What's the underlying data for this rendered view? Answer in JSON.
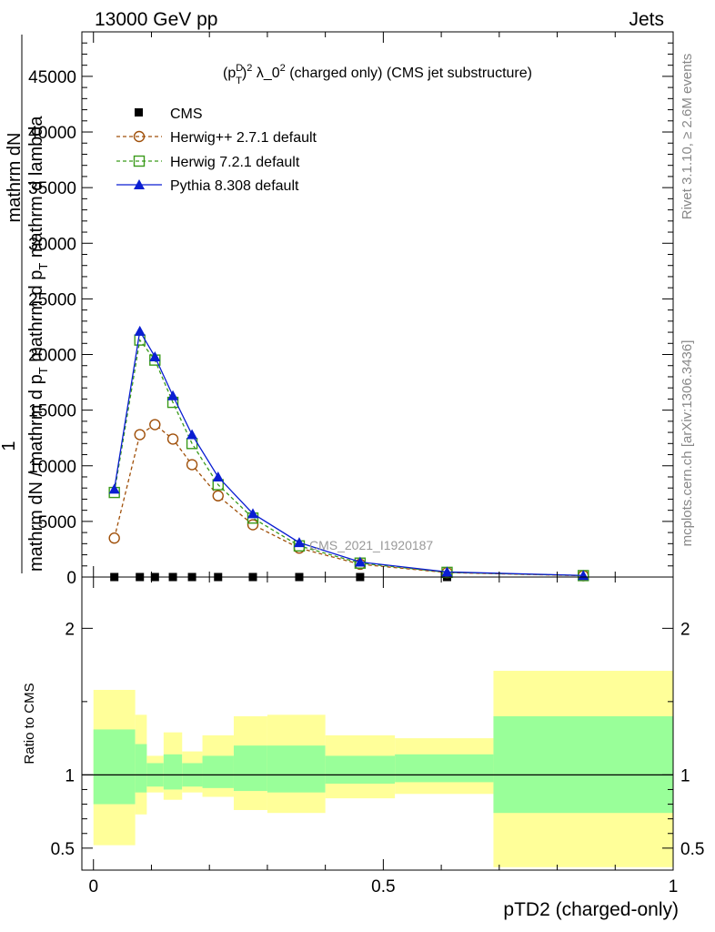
{
  "header": {
    "left": "13000 GeV pp",
    "right": "Jets"
  },
  "side_labels": {
    "rivet": "Rivet 3.1.10, ≥ 2.6M events",
    "mcplots": "mcplots.cern.ch [arXiv:1306.3436]"
  },
  "colors": {
    "cms": "#000000",
    "herwigpp": "#a0500a",
    "herwig7": "#3a9a1a",
    "pythia": "#0a1ed2",
    "band_inner": "#99ff99",
    "band_outer": "#ffff99"
  },
  "chart_data": [
    {
      "type": "line",
      "title_parts": {
        "p": "(p",
        "sup1": "D",
        "sub1": "T",
        "rest": ")",
        "sup2": "2",
        "lam": " λ_0",
        "sup3": "2",
        "tail": " (charged only) (CMS jet substructure)"
      },
      "ylabel_parts": {
        "one": "1",
        "num": "mathrm dN",
        "den_a": "mathrm dN / mathrm d p",
        "den_sub": "T",
        "den_b": " mathrm d p",
        "den_sub2": "T",
        "den_c": " mathrm d lambda"
      },
      "watermark": "CMS_2021_I1920187",
      "x_range": [
        -0.02,
        1.0
      ],
      "y_range": [
        0,
        49000
      ],
      "y_ticks": [
        0,
        5000,
        10000,
        15000,
        20000,
        25000,
        30000,
        35000,
        40000,
        45000
      ],
      "y_tick_labels": [
        "0",
        "5000",
        "10000",
        "15000",
        "20000",
        "25000",
        "30000",
        "35000",
        "40000",
        "45000"
      ],
      "legend": [
        "CMS",
        "Herwig++ 2.7.1 default",
        "Herwig 7.2.1 default",
        "Pythia 8.308 default"
      ],
      "legend_position": "top-left",
      "series": [
        {
          "name": "CMS",
          "style": "square",
          "x": [
            0.036,
            0.08,
            0.106,
            0.137,
            0.17,
            0.215,
            0.275,
            0.355,
            0.46,
            0.61,
            0.845
          ],
          "y": [
            0,
            0,
            0,
            0,
            0,
            0,
            0,
            0,
            0,
            0,
            0
          ]
        },
        {
          "name": "Herwig++ 2.7.1 default",
          "style": "circle",
          "x": [
            0.036,
            0.08,
            0.106,
            0.137,
            0.17,
            0.215,
            0.275,
            0.355,
            0.46,
            0.61,
            0.845
          ],
          "y": [
            3500,
            12800,
            13700,
            12400,
            10100,
            7300,
            4700,
            2600,
            1150,
            400,
            120
          ]
        },
        {
          "name": "Herwig 7.2.1 default",
          "style": "square-open",
          "x": [
            0.036,
            0.08,
            0.106,
            0.137,
            0.17,
            0.215,
            0.275,
            0.355,
            0.46,
            0.61,
            0.845
          ],
          "y": [
            7600,
            21300,
            19500,
            15700,
            12000,
            8300,
            5300,
            2800,
            1250,
            420,
            130
          ]
        },
        {
          "name": "Pythia 8.308 default",
          "style": "triangle",
          "x": [
            0.036,
            0.08,
            0.106,
            0.137,
            0.17,
            0.215,
            0.275,
            0.355,
            0.46,
            0.61,
            0.845
          ],
          "y": [
            7900,
            22100,
            19800,
            16300,
            12800,
            9000,
            5700,
            3100,
            1350,
            460,
            140
          ]
        }
      ]
    },
    {
      "type": "area",
      "ylabel": "Ratio to CMS",
      "xlabel": "pTD2 (charged-only)",
      "x_range": [
        -0.02,
        1.0
      ],
      "y_range": [
        0.35,
        2.35
      ],
      "x_ticks": [
        0,
        0.5,
        1
      ],
      "x_tick_labels": [
        "0",
        "0.5",
        "1"
      ],
      "y_ticks": [
        0.5,
        1,
        2
      ],
      "y_tick_labels": [
        "0.5",
        "1",
        "2"
      ],
      "reference_line": 1,
      "bins": [
        {
          "x0": 0.0,
          "x1": 0.072,
          "inner": [
            0.8,
            1.31
          ],
          "outer": [
            0.52,
            1.58
          ]
        },
        {
          "x0": 0.072,
          "x1": 0.092,
          "inner": [
            0.88,
            1.21
          ],
          "outer": [
            0.73,
            1.41
          ]
        },
        {
          "x0": 0.092,
          "x1": 0.121,
          "inner": [
            0.92,
            1.08
          ],
          "outer": [
            0.88,
            1.13
          ]
        },
        {
          "x0": 0.121,
          "x1": 0.153,
          "inner": [
            0.9,
            1.14
          ],
          "outer": [
            0.83,
            1.29
          ]
        },
        {
          "x0": 0.153,
          "x1": 0.188,
          "inner": [
            0.92,
            1.08
          ],
          "outer": [
            0.88,
            1.16
          ]
        },
        {
          "x0": 0.188,
          "x1": 0.242,
          "inner": [
            0.91,
            1.13
          ],
          "outer": [
            0.85,
            1.27
          ]
        },
        {
          "x0": 0.242,
          "x1": 0.3,
          "inner": [
            0.89,
            1.2
          ],
          "outer": [
            0.76,
            1.4
          ]
        },
        {
          "x0": 0.3,
          "x1": 0.4,
          "inner": [
            0.88,
            1.2
          ],
          "outer": [
            0.74,
            1.41
          ]
        },
        {
          "x0": 0.4,
          "x1": 0.52,
          "inner": [
            0.94,
            1.13
          ],
          "outer": [
            0.84,
            1.27
          ]
        },
        {
          "x0": 0.52,
          "x1": 0.69,
          "inner": [
            0.95,
            1.14
          ],
          "outer": [
            0.87,
            1.25
          ]
        },
        {
          "x0": 0.69,
          "x1": 1.0,
          "inner": [
            0.74,
            1.4
          ],
          "outer": [
            0.37,
            1.71
          ]
        }
      ]
    }
  ]
}
